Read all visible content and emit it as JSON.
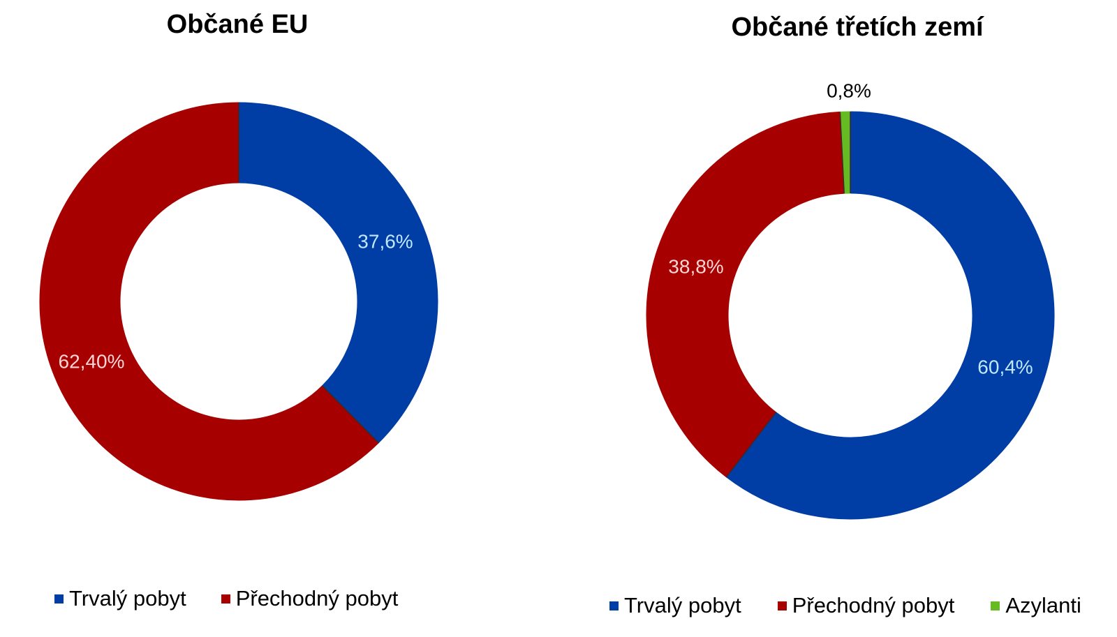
{
  "chart_data": [
    {
      "type": "pie",
      "title": "Občané EU",
      "categories": [
        "Trvalý pobyt",
        "Přechodný pobyt"
      ],
      "values": [
        37.6,
        62.4
      ],
      "data_labels": [
        "37,6%",
        "62,40%"
      ],
      "colors": [
        "#003DA5",
        "#A60000"
      ],
      "label_colors": [
        "#BFE8FF",
        "#FFD5D5"
      ],
      "legend": "bottom"
    },
    {
      "type": "pie",
      "title": "Občané třetích zemí",
      "categories": [
        "Trvalý pobyt",
        "Přechodný pobyt",
        "Azylanti"
      ],
      "values": [
        60.4,
        38.8,
        0.8
      ],
      "data_labels": [
        "60,4%",
        "38,8%",
        "0,8%"
      ],
      "colors": [
        "#003DA5",
        "#A60000",
        "#66BB22"
      ],
      "label_colors": [
        "#BFE8FF",
        "#FFD5D5",
        "#000000"
      ],
      "legend": "bottom"
    }
  ]
}
